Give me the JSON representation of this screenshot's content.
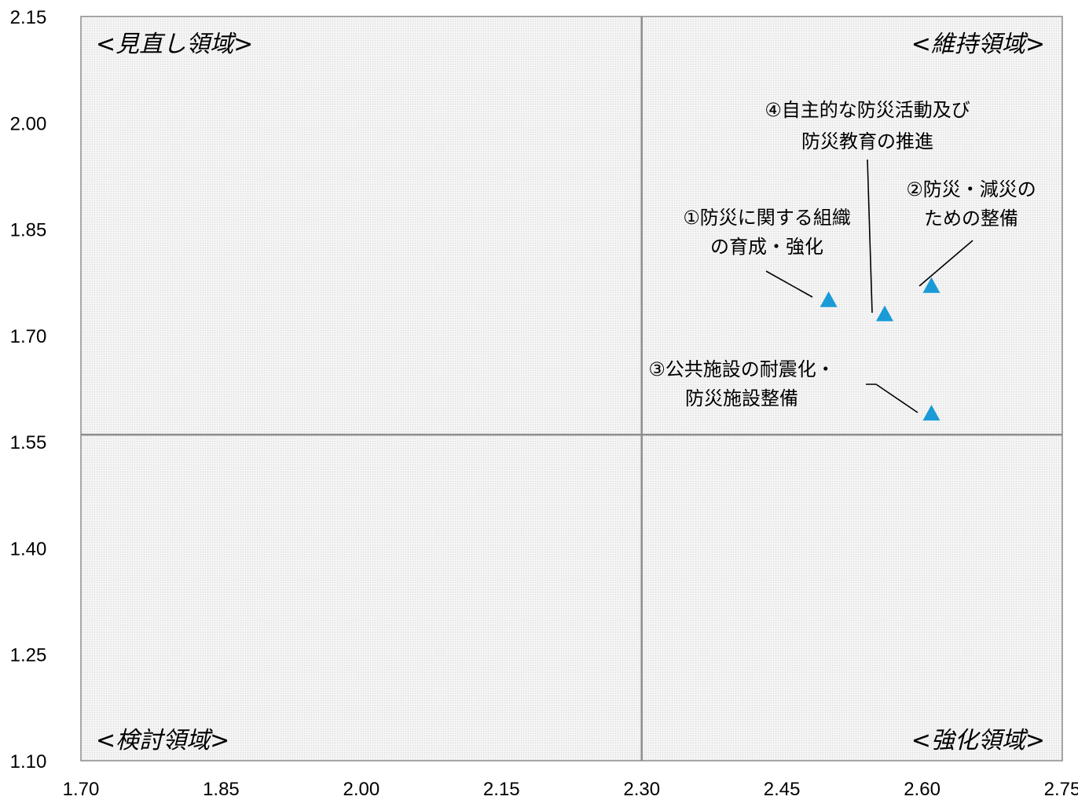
{
  "chart_data": {
    "type": "scatter",
    "title": "",
    "xlabel": "",
    "ylabel": "",
    "xlim": [
      1.7,
      2.75
    ],
    "ylim": [
      1.1,
      2.15
    ],
    "x_ticks": [
      "1.70",
      "1.85",
      "2.00",
      "2.15",
      "2.30",
      "2.45",
      "2.60",
      "2.75"
    ],
    "y_ticks": [
      "1.10",
      "1.25",
      "1.40",
      "1.55",
      "1.70",
      "1.85",
      "2.00",
      "2.15"
    ],
    "divider_x": 2.3,
    "divider_y": 1.56,
    "grid": false,
    "marker": "triangle",
    "marker_color": "#1a9bd7",
    "quadrant_labels": {
      "top_left": "<見直し領域>",
      "top_right": "<維持領域>",
      "bottom_left": "<検討領域>",
      "bottom_right": "<強化領域>"
    },
    "points": [
      {
        "label_lines": [
          "①防災に関する組織",
          "の育成・強化"
        ],
        "x": 2.5,
        "y": 1.75
      },
      {
        "label_lines": [
          "②防災・減災の",
          "ための整備"
        ],
        "x": 2.61,
        "y": 1.77
      },
      {
        "label_lines": [
          "③公共施設の耐震化・",
          "防災施設整備"
        ],
        "x": 2.61,
        "y": 1.59
      },
      {
        "label_lines": [
          "④自主的な防災活動及び",
          "防災教育の推進"
        ],
        "x": 2.56,
        "y": 1.73
      }
    ]
  }
}
